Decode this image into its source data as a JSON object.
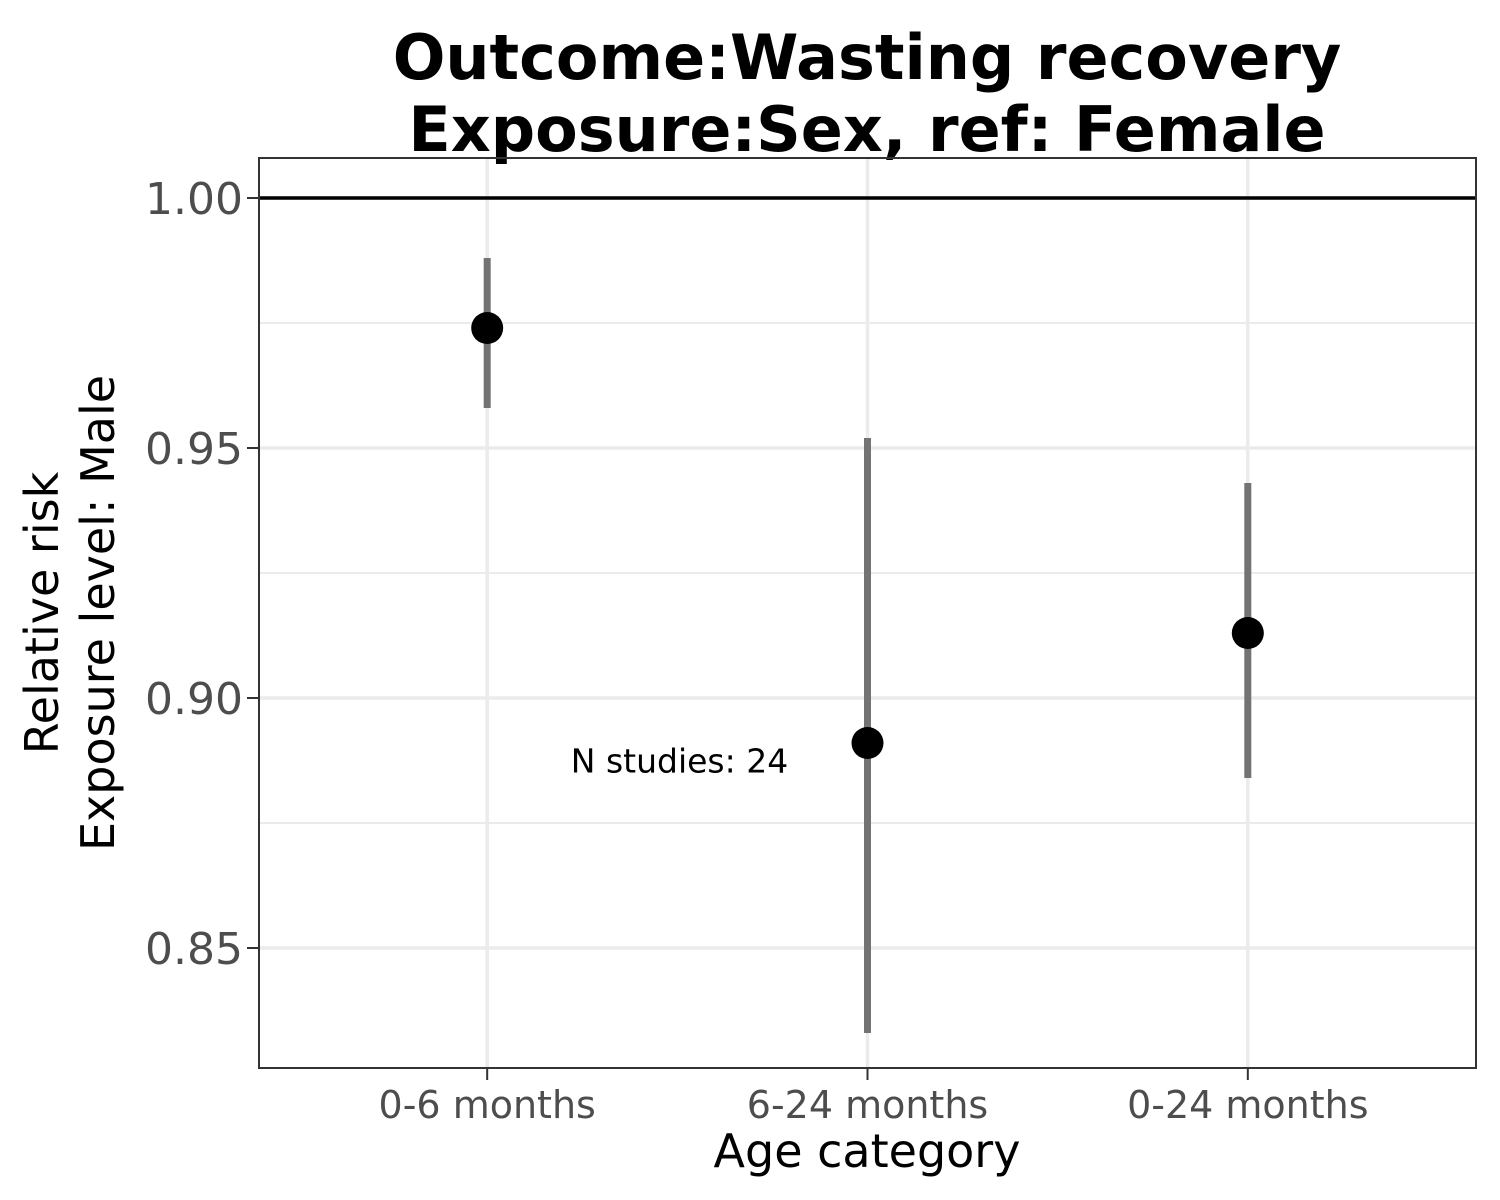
{
  "chart_data": {
    "type": "scatter",
    "title_lines": [
      "Outcome:Wasting recovery",
      "Exposure:Sex, ref: Female"
    ],
    "xlabel": "Age category",
    "ylabel_lines": [
      "Relative risk",
      "Exposure level: Male"
    ],
    "categories": [
      "0-6 months",
      "6-24 months",
      "0-24 months"
    ],
    "estimates": [
      0.974,
      0.891,
      0.913
    ],
    "ci_lower": [
      0.958,
      0.833,
      0.884
    ],
    "ci_upper": [
      0.988,
      0.952,
      0.943
    ],
    "y_ticks": [
      0.85,
      0.9,
      0.95,
      1.0
    ],
    "y_tick_labels": [
      "0.85",
      "0.90",
      "0.95",
      "1.00"
    ],
    "ylim": [
      0.826,
      1.008
    ],
    "reference_line": 1.0,
    "annotation": {
      "text": "N studies: 24",
      "category": "6-24 months",
      "y": 0.8875
    },
    "grid": true,
    "colors": {
      "point": "#000000",
      "errorbar": "#737373",
      "grid": "#ebebeb",
      "reference": "#000000"
    }
  }
}
